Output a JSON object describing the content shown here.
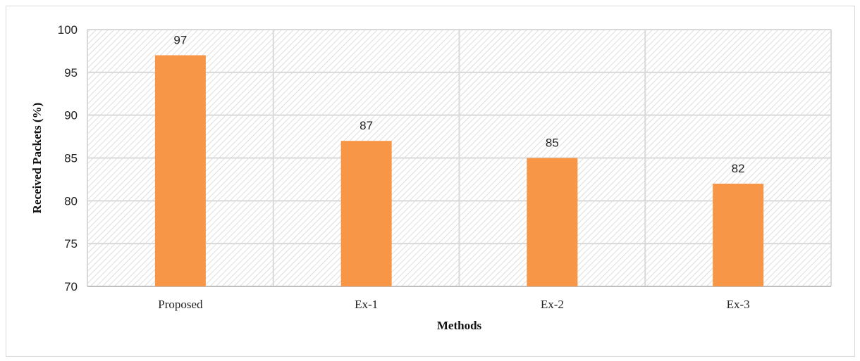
{
  "chart_data": {
    "type": "bar",
    "categories": [
      "Proposed",
      "Ex-1",
      "Ex-2",
      "Ex-3"
    ],
    "values": [
      97,
      87,
      85,
      82
    ],
    "data_labels": [
      "97",
      "87",
      "85",
      "82"
    ],
    "xlabel": "Methods",
    "ylabel": "Received Packets (%)",
    "ylim": [
      70,
      100
    ],
    "yticks": [
      70,
      75,
      80,
      85,
      90,
      95,
      100
    ],
    "grid": true,
    "plot_background": "hatched",
    "colors": {
      "bar": "#f79646",
      "grid": "#d9d9d9",
      "hatch": "#cfcfcf"
    }
  }
}
